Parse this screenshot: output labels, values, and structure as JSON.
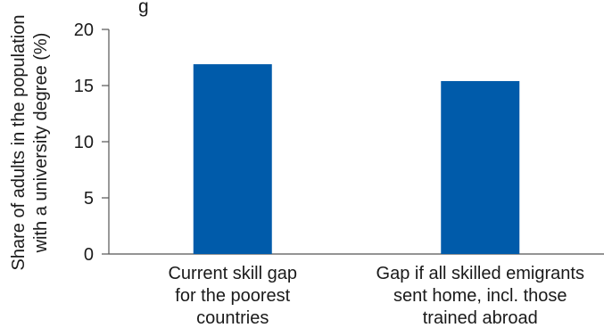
{
  "chart_data": {
    "type": "bar",
    "title": "g",
    "categories": [
      [
        "Current skill gap",
        "for the poorest",
        "countries"
      ],
      [
        "Gap if all skilled emigrants",
        "sent home, incl. those",
        "trained abroad"
      ]
    ],
    "values": [
      16.9,
      15.4
    ],
    "ylabel": [
      "Share of adults in the population",
      "with a university degree (%)"
    ],
    "xlabel": "",
    "ylim": [
      0,
      20
    ],
    "yticks": [
      0,
      5,
      10,
      15,
      20
    ],
    "grid": false,
    "legend": "none",
    "bar_color": "#005baa",
    "axis_color": "#555555"
  }
}
